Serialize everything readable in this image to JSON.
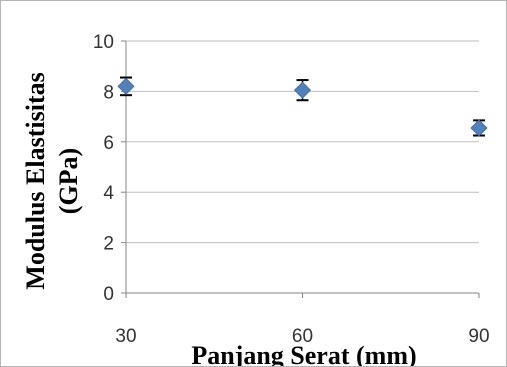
{
  "chart_data": {
    "type": "scatter",
    "title": "",
    "xlabel": "Panjang Serat (mm)",
    "ylabel_line1": "Modulus Elastisitas",
    "ylabel_line2": "(GPa)",
    "x_ticks": [
      "30",
      "60",
      "90"
    ],
    "y_ticks": [
      "0",
      "2",
      "4",
      "6",
      "8",
      "10"
    ],
    "xlim": [
      30,
      90
    ],
    "ylim": [
      0,
      10
    ],
    "grid": true,
    "legend": "none",
    "marker": "diamond",
    "color": "#4f81bd",
    "series": [
      {
        "x": [
          30,
          60,
          90
        ],
        "y": [
          8.2,
          8.05,
          6.55
        ],
        "error": [
          0.35,
          0.4,
          0.3
        ]
      }
    ]
  }
}
